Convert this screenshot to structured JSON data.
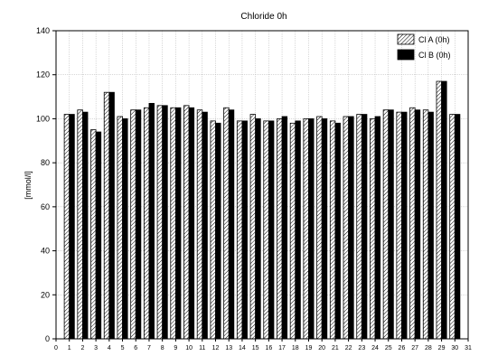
{
  "chart_data": {
    "type": "bar",
    "title": "Chloride 0h",
    "xlabel": "",
    "ylabel": "[mmol/l]",
    "xlim": [
      0,
      31
    ],
    "ylim": [
      0,
      140
    ],
    "x_ticks": [
      "0",
      "1",
      "2",
      "3",
      "4",
      "5",
      "6",
      "7",
      "8",
      "9",
      "10",
      "11",
      "12",
      "13",
      "14",
      "15",
      "16",
      "17",
      "18",
      "19",
      "20",
      "21",
      "22",
      "23",
      "24",
      "25",
      "26",
      "27",
      "28",
      "29",
      "30",
      "31"
    ],
    "y_ticks": [
      "0",
      "20",
      "40",
      "60",
      "80",
      "100",
      "120",
      "140"
    ],
    "grid": true,
    "legend_position": "top-right",
    "categories": [
      1,
      2,
      3,
      4,
      5,
      6,
      7,
      8,
      9,
      10,
      11,
      12,
      13,
      14,
      15,
      16,
      17,
      18,
      19,
      20,
      21,
      22,
      23,
      24,
      25,
      26,
      27,
      28,
      29,
      30
    ],
    "series": [
      {
        "name": "Cl A (0h)",
        "pattern": "hatched",
        "values": [
          102,
          104,
          95,
          112,
          101,
          104,
          105,
          106,
          105,
          106,
          104,
          99,
          105,
          99,
          102,
          99,
          100,
          98,
          100,
          101,
          99,
          101,
          102,
          100,
          104,
          103,
          105,
          104,
          117,
          102
        ]
      },
      {
        "name": "Cl B (0h)",
        "pattern": "solid",
        "values": [
          102,
          103,
          94,
          112,
          100,
          104,
          107,
          106,
          105,
          105,
          103,
          98,
          104,
          99,
          100,
          99,
          101,
          99,
          100,
          100,
          98,
          101,
          102,
          101,
          104,
          103,
          104,
          103,
          117,
          102
        ]
      }
    ],
    "colors": {
      "series_b_fill": "#000000",
      "hatch_bg": "#ffffff",
      "grid": "#b0b0b0"
    }
  }
}
